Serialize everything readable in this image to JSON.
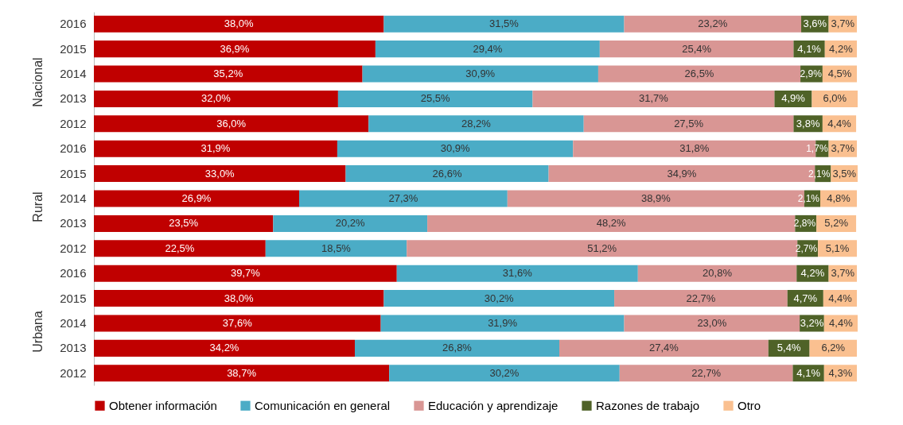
{
  "chart_data": {
    "type": "bar",
    "orientation": "horizontal",
    "stacked": true,
    "legend": "bottom",
    "categories": [
      "2016",
      "2015",
      "2014",
      "2013",
      "2012",
      "2016",
      "2015",
      "2014",
      "2013",
      "2012",
      "2016",
      "2015",
      "2014",
      "2013",
      "2012"
    ],
    "annotations": [
      "Nacional",
      "Rural",
      "Urbana"
    ],
    "series": [
      {
        "name": "Obtener información",
        "color": "#c00000",
        "values": [
          38.0,
          36.9,
          35.2,
          32.0,
          36.0,
          31.9,
          33.0,
          26.9,
          23.5,
          22.5,
          39.7,
          38.0,
          37.6,
          34.2,
          38.7
        ],
        "value_labels": [
          "38,0%",
          "36,9%",
          "35,2%",
          "32,0%",
          "36,0%",
          "31,9%",
          "33,0%",
          "26,9%",
          "23,5%",
          "22,5%",
          "39,7%",
          "38,0%",
          "37,6%",
          "34,2%",
          "38,7%"
        ]
      },
      {
        "name": "Comunicación en general",
        "color": "#4bacc6",
        "values": [
          31.5,
          29.4,
          30.9,
          25.5,
          28.2,
          30.9,
          26.6,
          27.3,
          20.2,
          18.5,
          31.6,
          30.2,
          31.9,
          26.8,
          30.2
        ],
        "value_labels": [
          "31,5%",
          "29,4%",
          "30,9%",
          "25,5%",
          "28,2%",
          "30,9%",
          "26,6%",
          "27,3%",
          "20,2%",
          "18,5%",
          "31,6%",
          "30,2%",
          "31,9%",
          "26,8%",
          "30,2%"
        ]
      },
      {
        "name": "Educación y aprendizaje",
        "color": "#d99694",
        "values": [
          23.2,
          25.4,
          26.5,
          31.7,
          27.5,
          31.8,
          34.9,
          38.9,
          48.2,
          51.2,
          20.8,
          22.7,
          23.0,
          27.4,
          22.7
        ],
        "value_labels": [
          "23,2%",
          "25,4%",
          "26,5%",
          "31,7%",
          "27,5%",
          "31,8%",
          "34,9%",
          "38,9%",
          "48,2%",
          "51,2%",
          "20,8%",
          "22,7%",
          "23,0%",
          "27,4%",
          "22,7%"
        ]
      },
      {
        "name": "Razones de trabajo",
        "color": "#4f6228",
        "values": [
          3.6,
          4.1,
          2.9,
          4.9,
          3.8,
          1.7,
          2.1,
          2.1,
          2.8,
          2.7,
          4.2,
          4.7,
          3.2,
          5.4,
          4.1
        ],
        "value_labels": [
          "3,6%",
          "4,1%",
          "2,9%",
          "4,9%",
          "3,8%",
          "1,7%",
          "2,1%",
          "2,1%",
          "2,8%",
          "2,7%",
          "4,2%",
          "4,7%",
          "3,2%",
          "5,4%",
          "4,1%"
        ]
      },
      {
        "name": "Otro",
        "color": "#fac090",
        "values": [
          3.7,
          4.2,
          4.5,
          6.0,
          4.4,
          3.7,
          3.5,
          4.8,
          5.2,
          5.1,
          3.7,
          4.4,
          4.4,
          6.2,
          4.3
        ],
        "value_labels": [
          "3,7%",
          "4,2%",
          "4,5%",
          "6,0%",
          "4,4%",
          "3,7%",
          "3,5%",
          "4,8%",
          "5,2%",
          "5,1%",
          "3,7%",
          "4,4%",
          "4,4%",
          "6,2%",
          "4,3%"
        ]
      }
    ]
  }
}
